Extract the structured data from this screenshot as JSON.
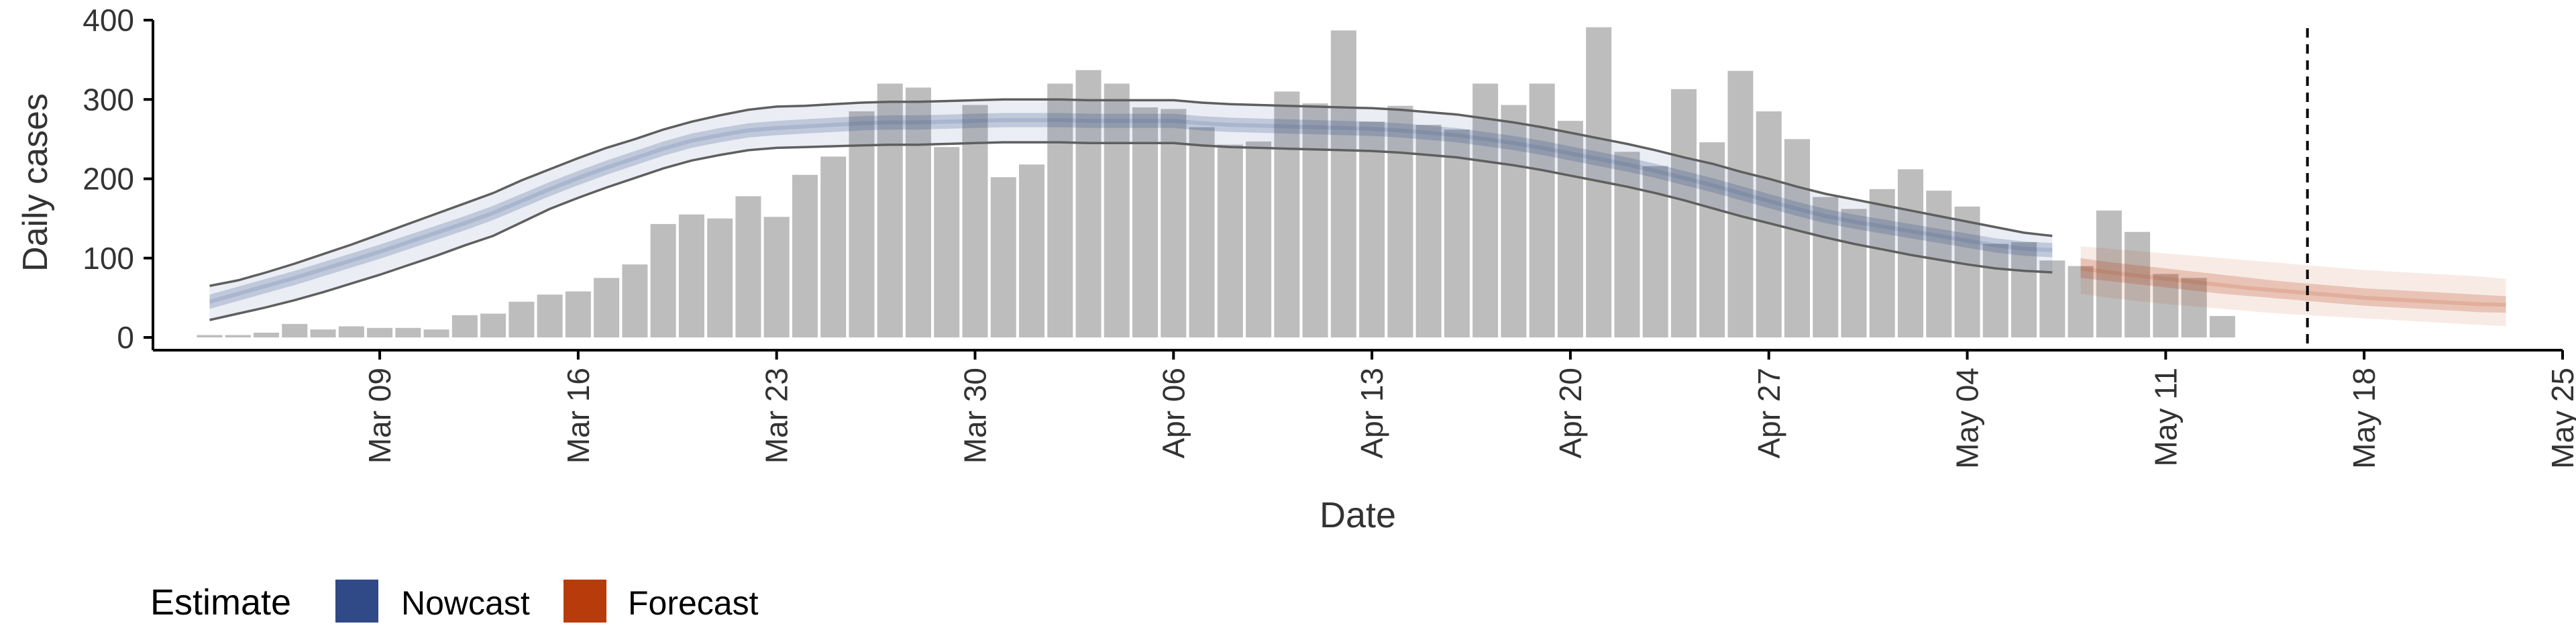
{
  "chart_data": {
    "type": "bar",
    "xlabel": "Date",
    "ylabel": "Daily cases",
    "ylim": [
      0,
      400
    ],
    "yticks": [
      0,
      100,
      200,
      300,
      400
    ],
    "x_date_range": [
      "2020-03-01",
      "2020-05-25"
    ],
    "xticks": [
      {
        "date": "2020-03-09",
        "label": "Mar 09"
      },
      {
        "date": "2020-03-16",
        "label": "Mar 16"
      },
      {
        "date": "2020-03-23",
        "label": "Mar 23"
      },
      {
        "date": "2020-03-30",
        "label": "Mar 30"
      },
      {
        "date": "2020-04-06",
        "label": "Apr 06"
      },
      {
        "date": "2020-04-13",
        "label": "Apr 13"
      },
      {
        "date": "2020-04-20",
        "label": "Apr 20"
      },
      {
        "date": "2020-04-27",
        "label": "Apr 27"
      },
      {
        "date": "2020-05-04",
        "label": "May 04"
      },
      {
        "date": "2020-05-11",
        "label": "May 11"
      },
      {
        "date": "2020-05-18",
        "label": "May 18"
      },
      {
        "date": "2020-05-25",
        "label": "May 25"
      }
    ],
    "bars": {
      "start_date": "2020-03-03",
      "values": [
        3,
        3,
        6,
        17,
        10,
        14,
        12,
        12,
        10,
        28,
        30,
        45,
        54,
        58,
        75,
        92,
        143,
        155,
        150,
        178,
        152,
        205,
        228,
        285,
        320,
        315,
        240,
        293,
        202,
        218,
        320,
        337,
        320,
        290,
        288,
        265,
        243,
        247,
        310,
        295,
        387,
        272,
        292,
        268,
        262,
        320,
        293,
        320,
        273,
        391,
        234,
        216,
        313,
        246,
        336,
        285,
        250,
        177,
        162,
        187,
        212,
        185,
        165,
        118,
        120,
        97,
        90,
        160,
        133,
        80,
        75,
        27
      ]
    },
    "nowcast": {
      "start_date": "2020-03-03",
      "median": [
        45,
        55,
        65,
        75,
        86,
        97,
        108,
        120,
        132,
        144,
        157,
        172,
        187,
        201,
        214,
        226,
        238,
        248,
        255,
        261,
        264,
        266,
        268,
        270,
        271,
        271,
        272,
        273,
        274,
        274,
        274,
        273,
        273,
        273,
        273,
        270,
        268,
        267,
        266,
        265,
        264,
        263,
        261,
        258,
        255,
        250,
        245,
        239,
        232,
        225,
        218,
        210,
        201,
        192,
        182,
        172,
        162,
        153,
        146,
        140,
        134,
        128,
        122,
        116,
        112,
        110
      ],
      "inner_lower": [
        36,
        46,
        56,
        66,
        77,
        88,
        99,
        111,
        123,
        135,
        148,
        163,
        178,
        192,
        205,
        217,
        229,
        239,
        246,
        252,
        255,
        257,
        259,
        261,
        262,
        262,
        263,
        264,
        265,
        265,
        265,
        264,
        264,
        264,
        264,
        261,
        259,
        258,
        257,
        256,
        255,
        254,
        252,
        249,
        246,
        241,
        236,
        230,
        223,
        216,
        209,
        201,
        192,
        183,
        173,
        163,
        153,
        144,
        137,
        131,
        125,
        119,
        113,
        107,
        103,
        101
      ],
      "inner_upper": [
        54,
        64,
        74,
        84,
        95,
        106,
        117,
        129,
        141,
        153,
        166,
        181,
        196,
        210,
        223,
        235,
        247,
        257,
        264,
        270,
        273,
        275,
        277,
        279,
        280,
        280,
        281,
        282,
        283,
        283,
        283,
        282,
        282,
        282,
        282,
        279,
        277,
        276,
        275,
        274,
        273,
        272,
        270,
        267,
        264,
        259,
        254,
        248,
        241,
        234,
        227,
        219,
        210,
        201,
        191,
        181,
        171,
        162,
        155,
        149,
        143,
        137,
        131,
        125,
        121,
        119
      ],
      "lower": [
        22,
        30,
        38,
        47,
        57,
        68,
        79,
        91,
        103,
        116,
        128,
        145,
        162,
        176,
        189,
        201,
        213,
        223,
        230,
        236,
        239,
        240,
        241,
        242,
        243,
        243,
        244,
        245,
        246,
        246,
        246,
        245,
        245,
        245,
        245,
        242,
        240,
        239,
        238,
        237,
        236,
        235,
        233,
        230,
        227,
        222,
        217,
        211,
        204,
        197,
        190,
        182,
        173,
        163,
        153,
        144,
        135,
        126,
        118,
        111,
        104,
        98,
        92,
        87,
        84,
        82
      ],
      "upper": [
        65,
        72,
        82,
        93,
        105,
        117,
        130,
        143,
        156,
        169,
        182,
        198,
        212,
        226,
        239,
        250,
        262,
        272,
        280,
        287,
        291,
        292,
        294,
        296,
        297,
        297,
        298,
        299,
        300,
        300,
        300,
        299,
        299,
        299,
        299,
        296,
        294,
        293,
        292,
        291,
        290,
        289,
        287,
        284,
        281,
        276,
        271,
        265,
        258,
        251,
        244,
        236,
        227,
        219,
        209,
        200,
        190,
        181,
        174,
        167,
        160,
        153,
        146,
        139,
        132,
        128
      ]
    },
    "forecast": {
      "start_date": "2020-05-08",
      "median": [
        87,
        82,
        78,
        74,
        70,
        66,
        62,
        59,
        56,
        53,
        50,
        48,
        46,
        44,
        42,
        41
      ],
      "inner_lower": [
        75,
        71,
        67,
        63,
        59,
        55,
        52,
        49,
        46,
        43,
        40,
        38,
        36,
        34,
        32,
        31
      ],
      "inner_upper": [
        100,
        95,
        91,
        87,
        83,
        79,
        75,
        71,
        68,
        65,
        62,
        60,
        58,
        56,
        54,
        52
      ],
      "lower": [
        55,
        50,
        46,
        42,
        39,
        36,
        33,
        30,
        28,
        26,
        24,
        22,
        20,
        18,
        16,
        14
      ],
      "upper": [
        115,
        112,
        109,
        106,
        103,
        100,
        97,
        94,
        91,
        88,
        85,
        83,
        81,
        79,
        77,
        74
      ]
    },
    "vline_date": "2020-05-16",
    "legend": {
      "title": "Estimate",
      "position": "bottom-left",
      "items": [
        {
          "label": "Nowcast",
          "color": "#2f4a87"
        },
        {
          "label": "Forecast",
          "color": "#b83b0c"
        }
      ]
    },
    "colors": {
      "bars": "#bdbdbd",
      "nowcast": "#2f4a87",
      "forecast": "#b83b0c",
      "ci_line": "#5f5f5f",
      "axis": "#000000"
    },
    "grid": false
  }
}
